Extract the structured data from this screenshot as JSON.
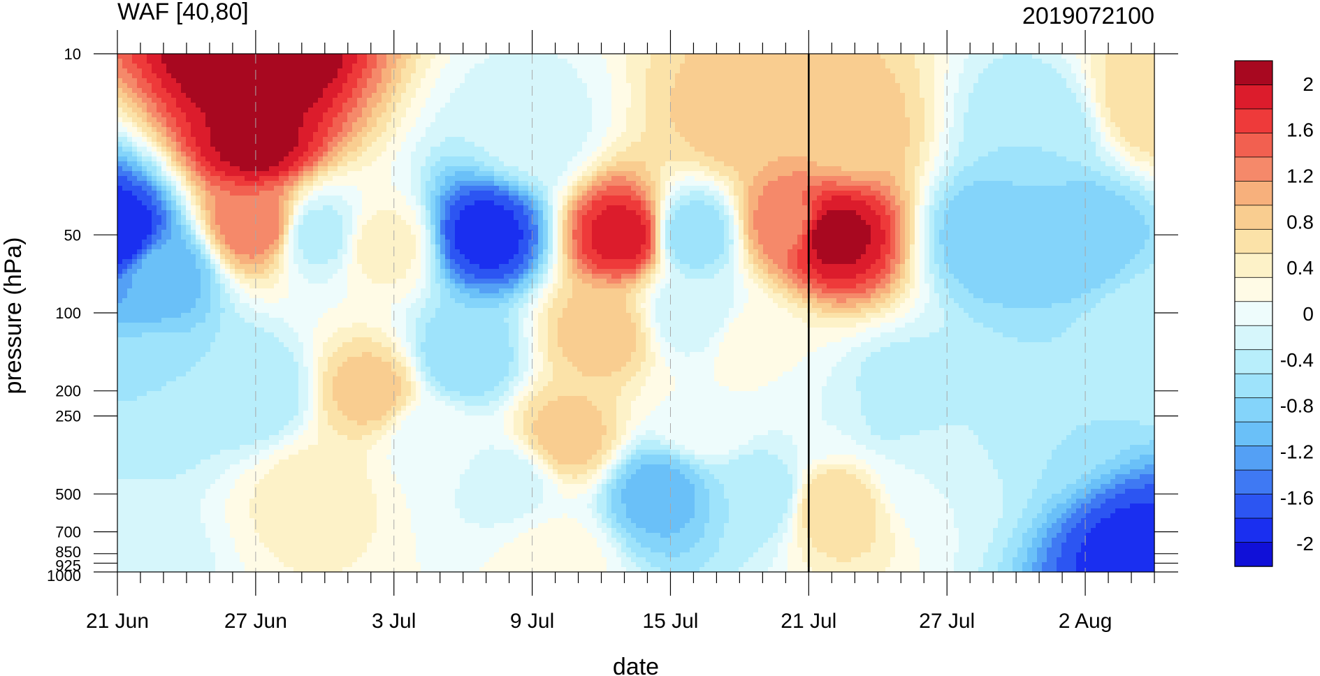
{
  "chart_data": {
    "type": "heatmap",
    "title": "WAF [40,80]",
    "right_title": "2019072100",
    "xlabel": "date",
    "ylabel": "pressure (hPa)",
    "x_tick_labels": [
      "21 Jun",
      "27 Jun",
      "3 Jul",
      "9 Jul",
      "15 Jul",
      "21 Jul",
      "27 Jul",
      "2 Aug"
    ],
    "x_tick_days": [
      0,
      6,
      12,
      18,
      24,
      30,
      36,
      42
    ],
    "x_range_days": [
      0,
      45
    ],
    "y_tick_labels": [
      "10",
      "50",
      "100",
      "200",
      "250",
      "500",
      "700",
      "850",
      "925",
      "1000"
    ],
    "y_levels": [
      10,
      50,
      100,
      200,
      250,
      500,
      700,
      850,
      925,
      1000
    ],
    "y_scale": "log",
    "y_range": [
      10,
      1000
    ],
    "current_date_line": "21 Jul",
    "colorbar": {
      "labels": [
        "2",
        "1.6",
        "1.2",
        "0.8",
        "0.4",
        "0",
        "-0.4",
        "-0.8",
        "-1.2",
        "-1.6",
        "-2"
      ],
      "min": -2.2,
      "max": 2.2,
      "step": 0.2,
      "colors": [
        "#1010d8",
        "#1a2ff0",
        "#2c55f2",
        "#3f79f3",
        "#54a0f5",
        "#6ac0f8",
        "#84d4fa",
        "#9ee3fb",
        "#b8eefb",
        "#d6f6fb",
        "#eefcfc",
        "#fffbe6",
        "#fdf2c8",
        "#fbe2a8",
        "#f9cd90",
        "#f7b07c",
        "#f5896a",
        "#f26050",
        "#ee3a3a",
        "#dc1c2c",
        "#a80820"
      ]
    },
    "features": [
      {
        "day": 0,
        "level": 50,
        "value": -2.0
      },
      {
        "day": 2,
        "level": 70,
        "value": -1.1
      },
      {
        "day": 1.5,
        "level": 200,
        "value": -0.6
      },
      {
        "day": 0.5,
        "level": 920,
        "value": -0.3
      },
      {
        "day": 6,
        "level": 10,
        "value": 2.2
      },
      {
        "day": 6,
        "level": 22,
        "value": 1.9
      },
      {
        "day": 6,
        "level": 45,
        "value": 1.2
      },
      {
        "day": 6,
        "level": 200,
        "value": -0.6
      },
      {
        "day": 8.8,
        "level": 50,
        "value": -0.5
      },
      {
        "day": 11,
        "level": 200,
        "value": 0.7
      },
      {
        "day": 8.5,
        "level": 500,
        "value": 0.3
      },
      {
        "day": 11.5,
        "level": 55,
        "value": 0.3
      },
      {
        "day": 13.5,
        "level": 300,
        "value": -0.1
      },
      {
        "day": 16,
        "level": 50,
        "value": -1.9
      },
      {
        "day": 15,
        "level": 150,
        "value": -0.8
      },
      {
        "day": 17,
        "level": 450,
        "value": -0.3
      },
      {
        "day": 18,
        "level": 20,
        "value": -0.3
      },
      {
        "day": 19.5,
        "level": 300,
        "value": 0.7
      },
      {
        "day": 19,
        "level": 900,
        "value": 0.1
      },
      {
        "day": 22,
        "level": 50,
        "value": 1.7
      },
      {
        "day": 21,
        "level": 120,
        "value": 0.7
      },
      {
        "day": 25,
        "level": 50,
        "value": -0.8
      },
      {
        "day": 25,
        "level": 100,
        "value": -0.4
      },
      {
        "day": 23.5,
        "level": 500,
        "value": -1.1
      },
      {
        "day": 25.5,
        "level": 250,
        "value": 0.0
      },
      {
        "day": 27,
        "level": 18,
        "value": 0.7
      },
      {
        "day": 27.5,
        "level": 130,
        "value": 0.1
      },
      {
        "day": 28,
        "level": 500,
        "value": -0.6
      },
      {
        "day": 29,
        "level": 45,
        "value": 1.1
      },
      {
        "day": 31,
        "level": 50,
        "value": 1.9
      },
      {
        "day": 31.5,
        "level": 20,
        "value": 0.7
      },
      {
        "day": 31,
        "level": 550,
        "value": 0.6
      },
      {
        "day": 30.5,
        "level": 250,
        "value": -0.2
      },
      {
        "day": 34,
        "level": 220,
        "value": -0.6
      },
      {
        "day": 35,
        "level": 400,
        "value": -0.2
      },
      {
        "day": 38,
        "level": 50,
        "value": -1.0
      },
      {
        "day": 41.5,
        "level": 50,
        "value": -1.0
      },
      {
        "day": 40,
        "level": 20,
        "value": -0.6
      },
      {
        "day": 40,
        "level": 250,
        "value": -0.6
      },
      {
        "day": 44.5,
        "level": 900,
        "value": -1.9
      },
      {
        "day": 45,
        "level": 15,
        "value": 0.6
      },
      {
        "day": 45,
        "level": 120,
        "value": -0.4
      }
    ]
  }
}
